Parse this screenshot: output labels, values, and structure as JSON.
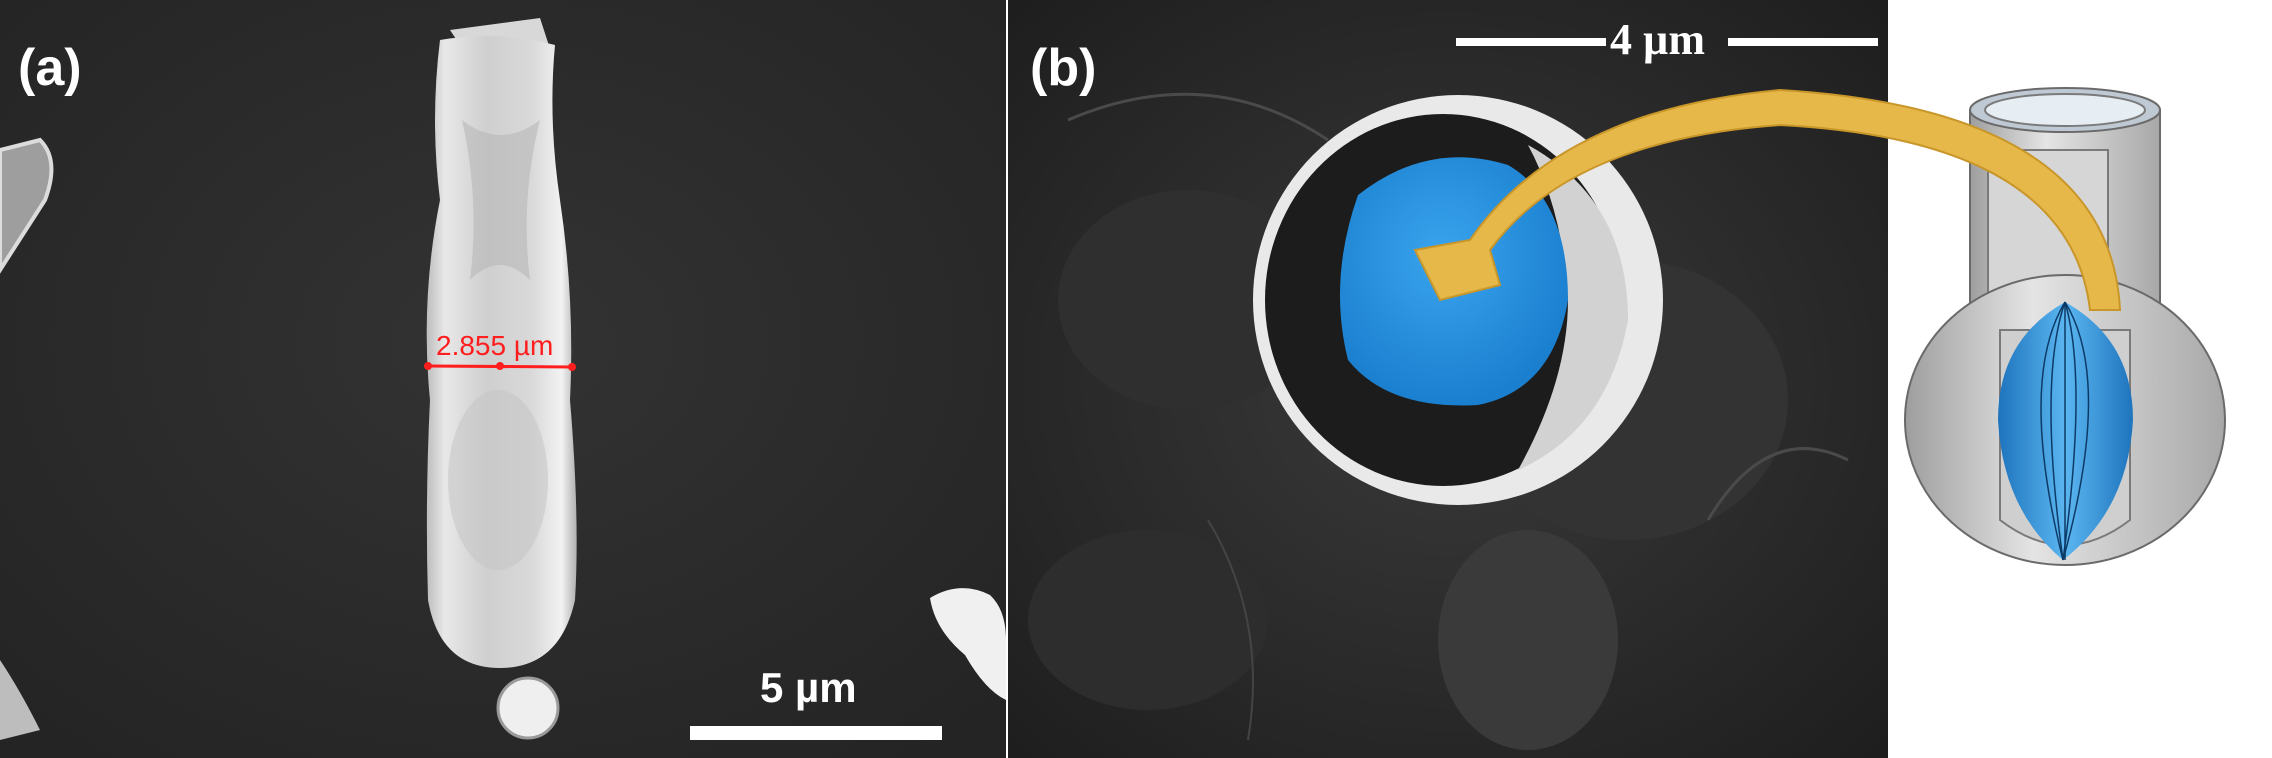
{
  "panel_a": {
    "label": "(a)",
    "measurement": "2.855 µm",
    "scale_bar": "5 µm"
  },
  "panel_b": {
    "label": "(b)",
    "scale_bar": "4 µm"
  },
  "colors": {
    "highlight_blue": "#1f8fe0",
    "arrow_gold": "#e6b84a",
    "measure_red": "#ff1e1e"
  }
}
